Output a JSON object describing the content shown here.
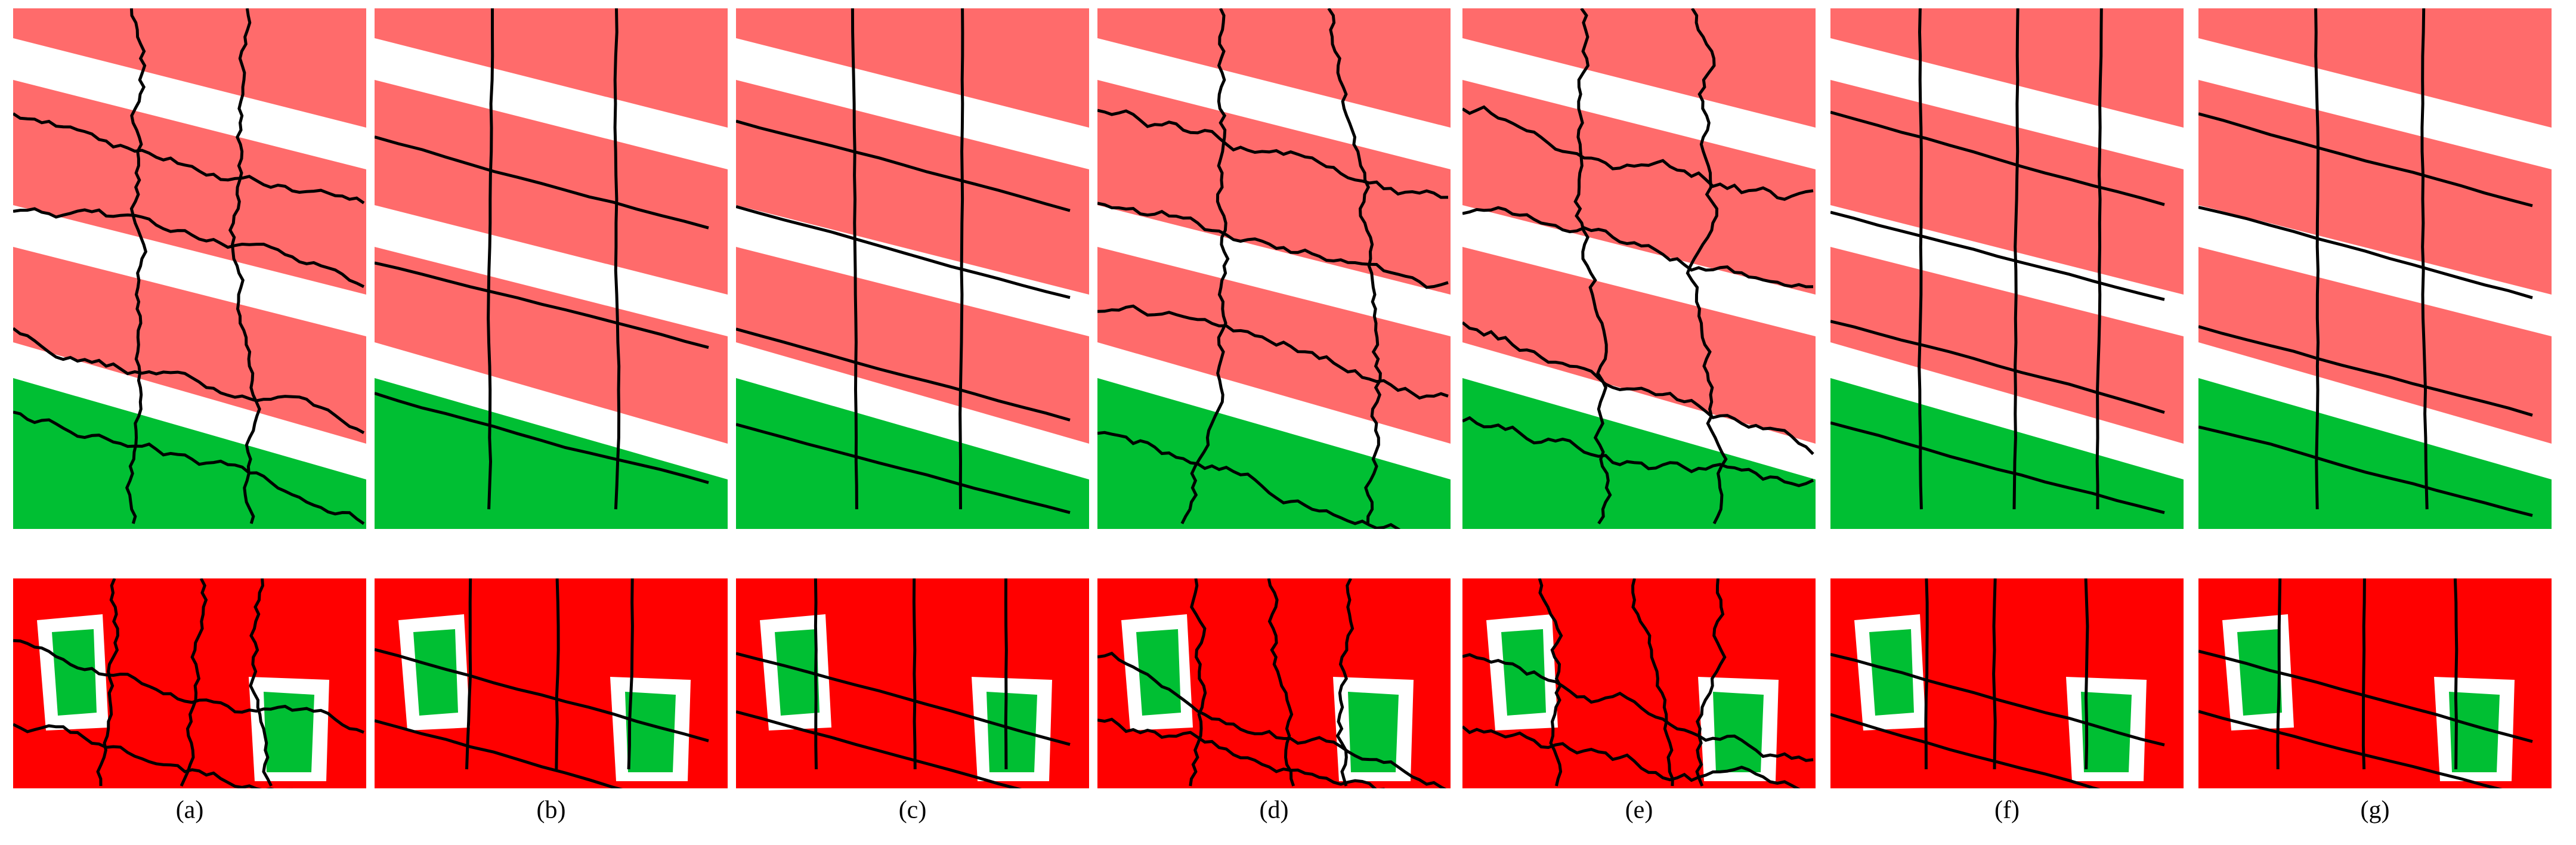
{
  "labels": [
    "(a)",
    "(b)",
    "(c)",
    "(d)",
    "(e)",
    "(f)",
    "(g)"
  ]
}
